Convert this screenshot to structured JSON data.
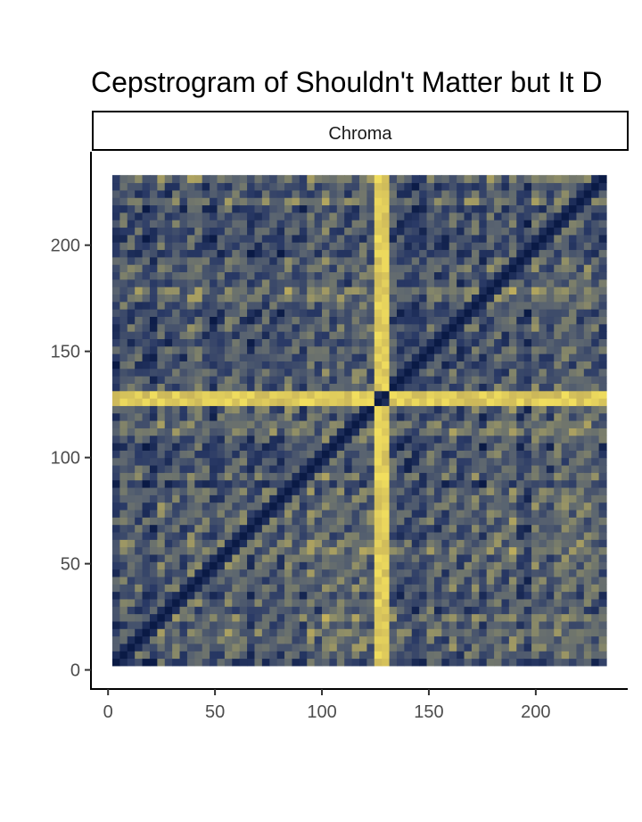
{
  "chart_data": {
    "type": "heatmap",
    "title": "Cepstrogram of Shouldn't Matter but It D",
    "facet_label": "Chroma",
    "xlabel": "",
    "ylabel": "",
    "xlim": [
      -8,
      243
    ],
    "ylim": [
      -9,
      244
    ],
    "x_ticks": [
      0,
      50,
      100,
      150,
      200
    ],
    "y_ticks": [
      0,
      50,
      100,
      150,
      200
    ],
    "x_tick_labels": [
      "0",
      "50",
      "100",
      "150",
      "200"
    ],
    "y_tick_labels": [
      "0",
      "50",
      "100",
      "150",
      "200"
    ],
    "grid": false,
    "legend": "none",
    "matrix_extent": [
      2,
      233
    ],
    "cell_size": 3.5,
    "diagonal": "self-similarity, minimum distance along x = y",
    "bright_cross_at": 127,
    "bright_row_at": 125,
    "colormap": [
      "#0a1a45",
      "#2a3a66",
      "#5a6470",
      "#8a8a68",
      "#c8b45a",
      "#f2df5e"
    ]
  }
}
